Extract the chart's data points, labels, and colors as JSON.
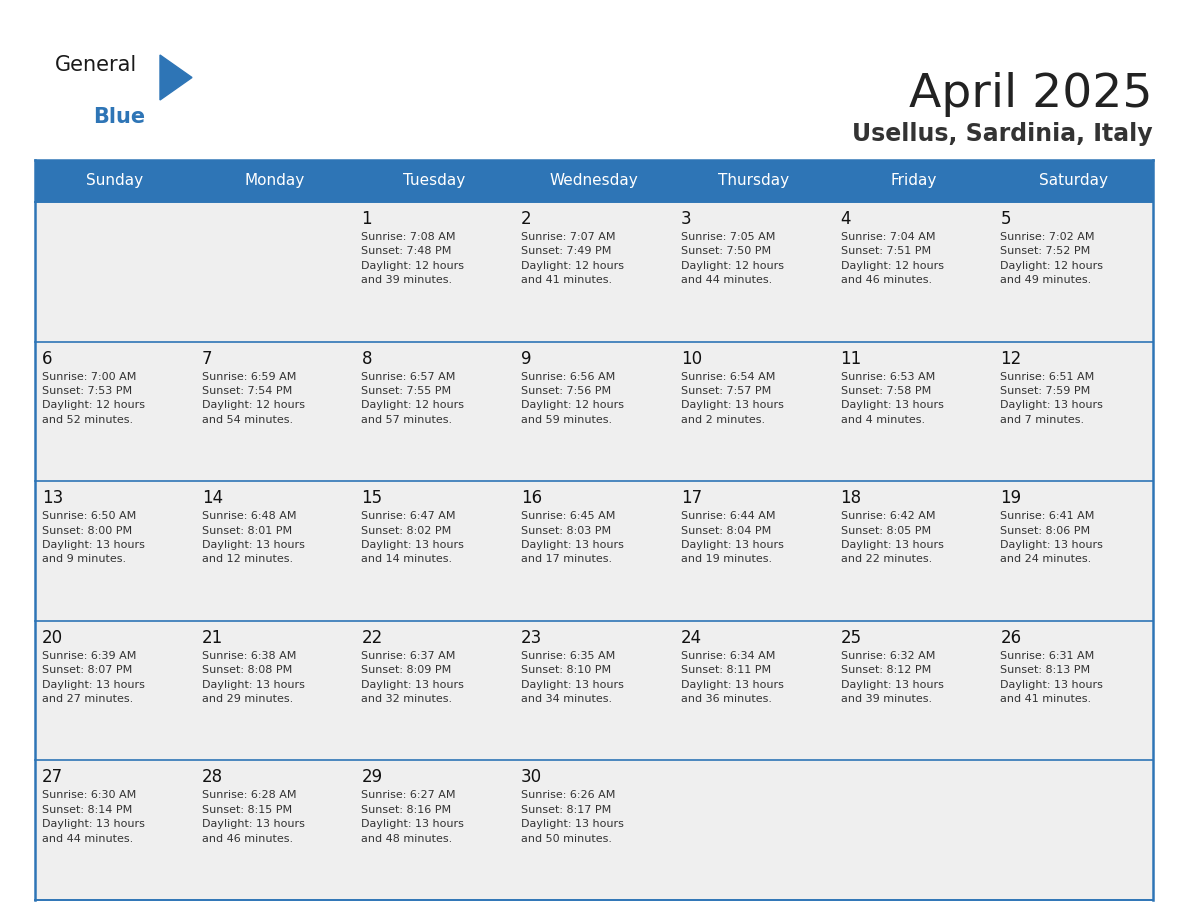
{
  "title": "April 2025",
  "subtitle": "Usellus, Sardinia, Italy",
  "header_bg": "#2E75B6",
  "header_text_color": "#FFFFFF",
  "cell_bg": "#EFEFEF",
  "border_color": "#2E75B6",
  "day_headers": [
    "Sunday",
    "Monday",
    "Tuesday",
    "Wednesday",
    "Thursday",
    "Friday",
    "Saturday"
  ],
  "title_color": "#222222",
  "subtitle_color": "#333333",
  "day_number_color": "#111111",
  "info_text_color": "#333333",
  "logo_general_color": "#1a1a1a",
  "logo_blue_color": "#2E75B6",
  "logo_triangle_color": "#2E75B6",
  "calendar_data": [
    [
      {
        "day": "",
        "info": ""
      },
      {
        "day": "",
        "info": ""
      },
      {
        "day": "1",
        "info": "Sunrise: 7:08 AM\nSunset: 7:48 PM\nDaylight: 12 hours\nand 39 minutes."
      },
      {
        "day": "2",
        "info": "Sunrise: 7:07 AM\nSunset: 7:49 PM\nDaylight: 12 hours\nand 41 minutes."
      },
      {
        "day": "3",
        "info": "Sunrise: 7:05 AM\nSunset: 7:50 PM\nDaylight: 12 hours\nand 44 minutes."
      },
      {
        "day": "4",
        "info": "Sunrise: 7:04 AM\nSunset: 7:51 PM\nDaylight: 12 hours\nand 46 minutes."
      },
      {
        "day": "5",
        "info": "Sunrise: 7:02 AM\nSunset: 7:52 PM\nDaylight: 12 hours\nand 49 minutes."
      }
    ],
    [
      {
        "day": "6",
        "info": "Sunrise: 7:00 AM\nSunset: 7:53 PM\nDaylight: 12 hours\nand 52 minutes."
      },
      {
        "day": "7",
        "info": "Sunrise: 6:59 AM\nSunset: 7:54 PM\nDaylight: 12 hours\nand 54 minutes."
      },
      {
        "day": "8",
        "info": "Sunrise: 6:57 AM\nSunset: 7:55 PM\nDaylight: 12 hours\nand 57 minutes."
      },
      {
        "day": "9",
        "info": "Sunrise: 6:56 AM\nSunset: 7:56 PM\nDaylight: 12 hours\nand 59 minutes."
      },
      {
        "day": "10",
        "info": "Sunrise: 6:54 AM\nSunset: 7:57 PM\nDaylight: 13 hours\nand 2 minutes."
      },
      {
        "day": "11",
        "info": "Sunrise: 6:53 AM\nSunset: 7:58 PM\nDaylight: 13 hours\nand 4 minutes."
      },
      {
        "day": "12",
        "info": "Sunrise: 6:51 AM\nSunset: 7:59 PM\nDaylight: 13 hours\nand 7 minutes."
      }
    ],
    [
      {
        "day": "13",
        "info": "Sunrise: 6:50 AM\nSunset: 8:00 PM\nDaylight: 13 hours\nand 9 minutes."
      },
      {
        "day": "14",
        "info": "Sunrise: 6:48 AM\nSunset: 8:01 PM\nDaylight: 13 hours\nand 12 minutes."
      },
      {
        "day": "15",
        "info": "Sunrise: 6:47 AM\nSunset: 8:02 PM\nDaylight: 13 hours\nand 14 minutes."
      },
      {
        "day": "16",
        "info": "Sunrise: 6:45 AM\nSunset: 8:03 PM\nDaylight: 13 hours\nand 17 minutes."
      },
      {
        "day": "17",
        "info": "Sunrise: 6:44 AM\nSunset: 8:04 PM\nDaylight: 13 hours\nand 19 minutes."
      },
      {
        "day": "18",
        "info": "Sunrise: 6:42 AM\nSunset: 8:05 PM\nDaylight: 13 hours\nand 22 minutes."
      },
      {
        "day": "19",
        "info": "Sunrise: 6:41 AM\nSunset: 8:06 PM\nDaylight: 13 hours\nand 24 minutes."
      }
    ],
    [
      {
        "day": "20",
        "info": "Sunrise: 6:39 AM\nSunset: 8:07 PM\nDaylight: 13 hours\nand 27 minutes."
      },
      {
        "day": "21",
        "info": "Sunrise: 6:38 AM\nSunset: 8:08 PM\nDaylight: 13 hours\nand 29 minutes."
      },
      {
        "day": "22",
        "info": "Sunrise: 6:37 AM\nSunset: 8:09 PM\nDaylight: 13 hours\nand 32 minutes."
      },
      {
        "day": "23",
        "info": "Sunrise: 6:35 AM\nSunset: 8:10 PM\nDaylight: 13 hours\nand 34 minutes."
      },
      {
        "day": "24",
        "info": "Sunrise: 6:34 AM\nSunset: 8:11 PM\nDaylight: 13 hours\nand 36 minutes."
      },
      {
        "day": "25",
        "info": "Sunrise: 6:32 AM\nSunset: 8:12 PM\nDaylight: 13 hours\nand 39 minutes."
      },
      {
        "day": "26",
        "info": "Sunrise: 6:31 AM\nSunset: 8:13 PM\nDaylight: 13 hours\nand 41 minutes."
      }
    ],
    [
      {
        "day": "27",
        "info": "Sunrise: 6:30 AM\nSunset: 8:14 PM\nDaylight: 13 hours\nand 44 minutes."
      },
      {
        "day": "28",
        "info": "Sunrise: 6:28 AM\nSunset: 8:15 PM\nDaylight: 13 hours\nand 46 minutes."
      },
      {
        "day": "29",
        "info": "Sunrise: 6:27 AM\nSunset: 8:16 PM\nDaylight: 13 hours\nand 48 minutes."
      },
      {
        "day": "30",
        "info": "Sunrise: 6:26 AM\nSunset: 8:17 PM\nDaylight: 13 hours\nand 50 minutes."
      },
      {
        "day": "",
        "info": ""
      },
      {
        "day": "",
        "info": ""
      },
      {
        "day": "",
        "info": ""
      }
    ]
  ]
}
